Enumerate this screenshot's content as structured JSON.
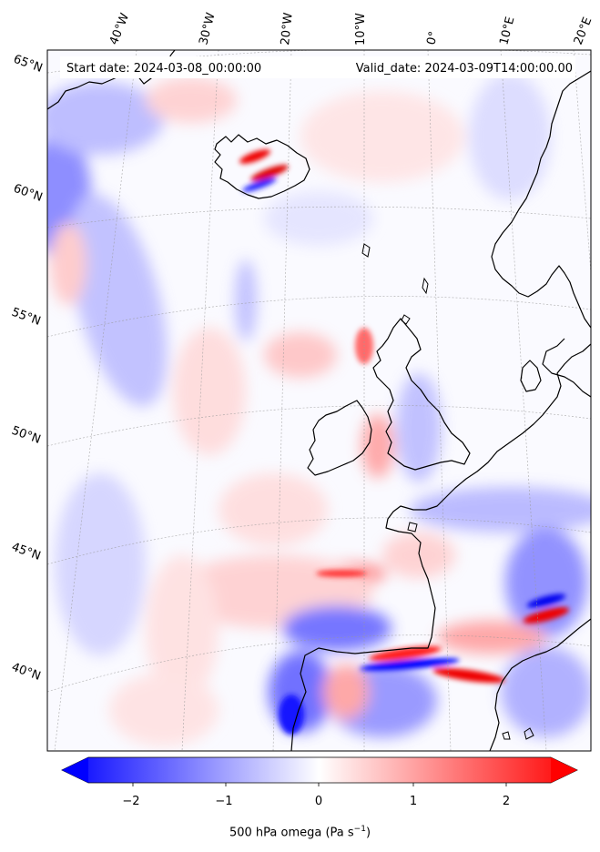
{
  "header": {
    "start_date": "Start date: 2024-03-08_00:00:00",
    "valid_date": "Valid_date: 2024-03-09T14:00:00.00"
  },
  "lon_labels": [
    "40°W",
    "30°W",
    "20°W",
    "10°W",
    "0°",
    "10°E",
    "20°E"
  ],
  "lat_labels": [
    "65°N",
    "60°N",
    "55°N",
    "50°N",
    "45°N",
    "40°N"
  ],
  "colorbar": {
    "ticks": [
      "−2",
      "−1",
      "0",
      "1",
      "2"
    ],
    "range": [
      -2.6,
      2.6
    ],
    "label_main": "500 hPa omega (Pa s",
    "label_exp": "−1",
    "label_close": ")",
    "cmap": "bwr"
  },
  "colors": {
    "negative": "#0000ff",
    "neutral": "#ffffff",
    "positive": "#ff0000",
    "coast": "#000000"
  }
}
